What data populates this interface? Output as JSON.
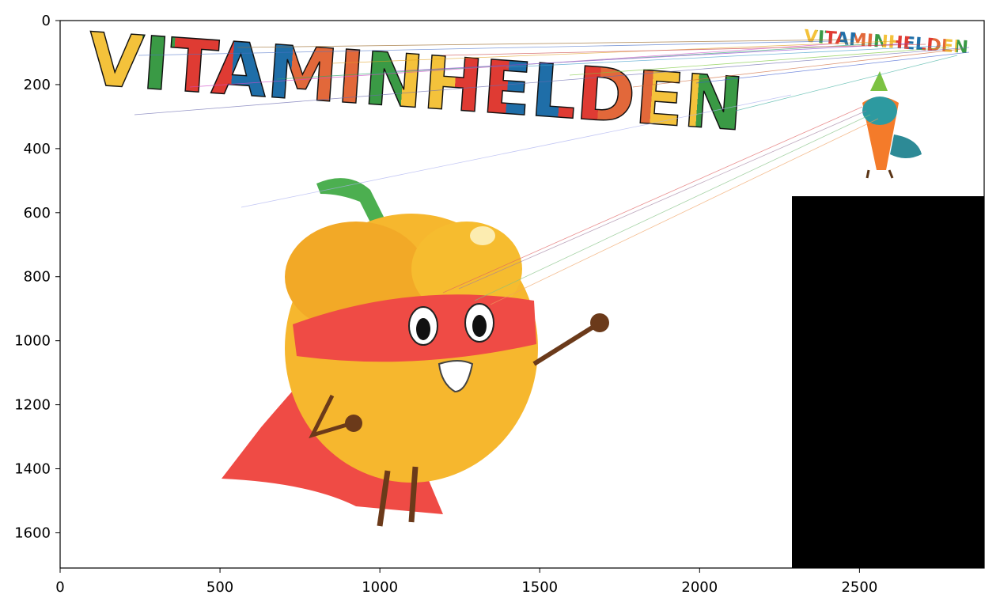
{
  "chart_data": {
    "type": "image",
    "xlim": [
      0,
      2890
    ],
    "ylim": [
      1710,
      0
    ],
    "xticks": [
      0,
      500,
      1000,
      1500,
      2000,
      2500
    ],
    "yticks": [
      0,
      200,
      400,
      600,
      800,
      1000,
      1200,
      1400,
      1600
    ],
    "image_texts": [
      "VITAMINHELDEN",
      "VITAMINHELDEN"
    ]
  }
}
